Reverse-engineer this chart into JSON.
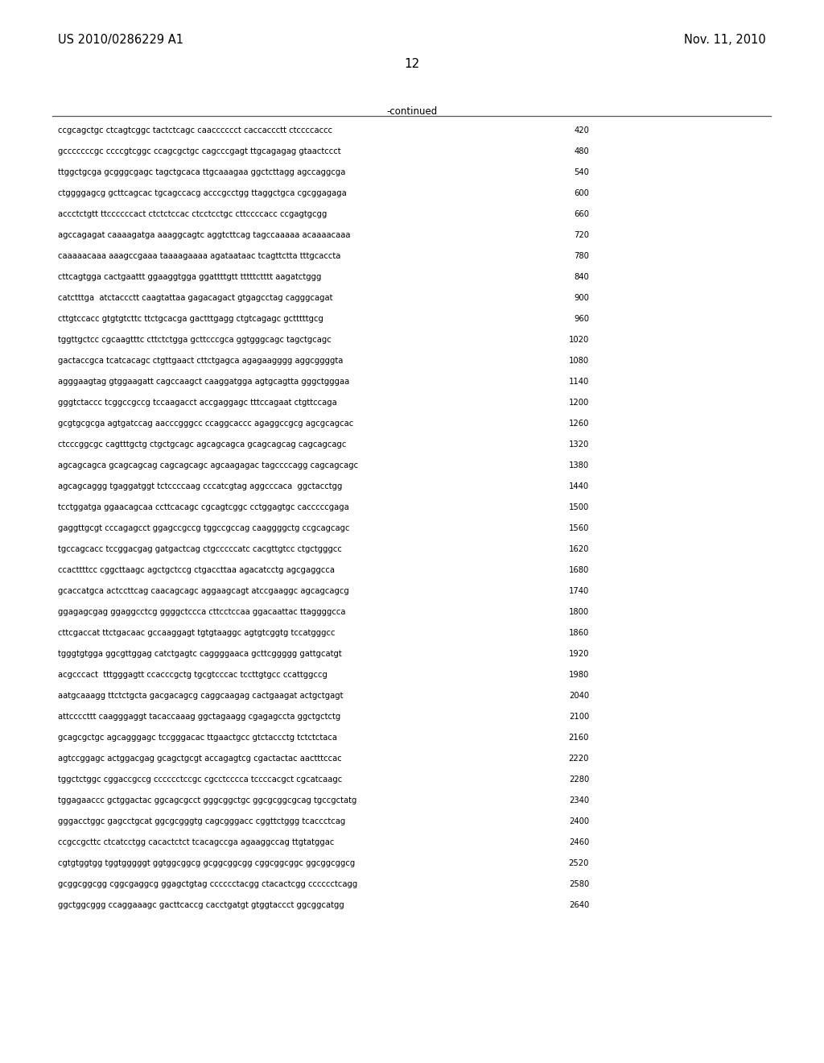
{
  "header_left": "US 2010/0286229 A1",
  "header_right": "Nov. 11, 2010",
  "page_number": "12",
  "continued_label": "-continued",
  "background_color": "#ffffff",
  "text_color": "#000000",
  "sequence_lines": [
    [
      "ccgcagctgc ctcagtcggc tactctcagc caacccccct caccaccctt ctccccaccc",
      "420"
    ],
    [
      "gcccccccgc ccccgtcggc ccagcgctgc cagcccgagt ttgcagagag gtaactccct",
      "480"
    ],
    [
      "ttggctgcga gcgggcgagc tagctgcaca ttgcaaagaa ggctcttagg agccaggcga",
      "540"
    ],
    [
      "ctggggagcg gcttcagcac tgcagccacg acccgcctgg ttaggctgca cgcggagaga",
      "600"
    ],
    [
      "accctctgtt ttccccccact ctctctccac ctcctcctgc cttccccacc ccgagtgcgg",
      "660"
    ],
    [
      "agccagagat caaaagatga aaaggcagtc aggtcttcag tagccaaaaa acaaaacaaa",
      "720"
    ],
    [
      "caaaaacaaa aaagccgaaa taaaagaaaa agataataac tcagttctta tttgcaccta",
      "780"
    ],
    [
      "cttcagtgga cactgaattt ggaaggtgga ggattttgtt tttttctttt aagatctggg",
      "840"
    ],
    [
      "catctttga  atctaccctt caagtattaa gagacagact gtgagcctag cagggcagat",
      "900"
    ],
    [
      "cttgtccacc gtgtgtcttc ttctgcacga gactttgagg ctgtcagagc gctttttgcg",
      "960"
    ],
    [
      "tggttgctcc cgcaagtttc cttctctgga gcttcccgca ggtgggcagc tagctgcagc",
      "1020"
    ],
    [
      "gactaccgca tcatcacagc ctgttgaact cttctgagca agagaagggg aggcggggta",
      "1080"
    ],
    [
      "agggaagtag gtggaagatt cagccaagct caaggatgga agtgcagtta gggctgggaa",
      "1140"
    ],
    [
      "gggtctaccc tcggccgccg tccaagacct accgaggagc tttccagaat ctgttccaga",
      "1200"
    ],
    [
      "gcgtgcgcga agtgatccag aacccgggcc ccaggcaccc agaggccgcg agcgcagcac",
      "1260"
    ],
    [
      "ctcccggcgc cagtttgctg ctgctgcagc agcagcagca gcagcagcag cagcagcagc",
      "1320"
    ],
    [
      "agcagcagca gcagcagcag cagcagcagc agcaagagac tagccccagg cagcagcagc",
      "1380"
    ],
    [
      "agcagcaggg tgaggatggt tctccccaag cccatcgtag aggcccaca  ggctacctgg",
      "1440"
    ],
    [
      "tcctggatga ggaacagcaa ccttcacagc cgcagtcggc cctggagtgc cacccccgaga",
      "1500"
    ],
    [
      "gaggttgcgt cccagagcct ggagccgccg tggccgccag caaggggctg ccgcagcagc",
      "1560"
    ],
    [
      "tgccagcacc tccggacgag gatgactcag ctgcccccatc cacgttgtcc ctgctgggcc",
      "1620"
    ],
    [
      "ccacttttcc cggcttaagc agctgctccg ctgaccttaa agacatcctg agcgaggcca",
      "1680"
    ],
    [
      "gcaccatgca actccttcag caacagcagc aggaagcagt atccgaaggc agcagcagcg",
      "1740"
    ],
    [
      "ggagagcgag ggaggcctcg ggggctccca cttcctccaa ggacaattac ttaggggcca",
      "1800"
    ],
    [
      "cttcgaccat ttctgacaac gccaaggagt tgtgtaaggc agtgtcggtg tccatgggcc",
      "1860"
    ],
    [
      "tgggtgtgga ggcgttggag catctgagtc caggggaaca gcttcggggg gattgcatgt",
      "1920"
    ],
    [
      "acgcccact  tttgggagtt ccacccgctg tgcgtcccac tccttgtgcc ccattggccg",
      "1980"
    ],
    [
      "aatgcaaagg ttctctgcta gacgacagcg caggcaagag cactgaagat actgctgagt",
      "2040"
    ],
    [
      "attccccttt caagggaggt tacaccaaag ggctagaagg cgagagccta ggctgctctg",
      "2100"
    ],
    [
      "gcagcgctgc agcagggagc tccgggacac ttgaactgcc gtctaccctg tctctctaca",
      "2160"
    ],
    [
      "agtccggagc actggacgag gcagctgcgt accagagtcg cgactactac aactttccac",
      "2220"
    ],
    [
      "tggctctggc cggaccgccg cccccctccgc cgcctcccca tccccacgct cgcatcaagc",
      "2280"
    ],
    [
      "tggagaaccc gctggactac ggcagcgcct gggcggctgc ggcgcggcgcag tgccgctatg",
      "2340"
    ],
    [
      "gggacctggc gagcctgcat ggcgcgggtg cagcgggacc cggttctggg tcaccctcag",
      "2400"
    ],
    [
      "ccgccgcttc ctcatcctgg cacactctct tcacagccga agaaggccag ttgtatggac",
      "2460"
    ],
    [
      "cgtgtggtgg tggtgggggt ggtggcggcg gcggcggcgg cggcggcggc ggcggcggcg",
      "2520"
    ],
    [
      "gcggcggcgg cggcgaggcg ggagctgtag cccccctacgg ctacactcgg cccccctcagg",
      "2580"
    ],
    [
      "ggctggcggg ccaggaaagc gacttcaccg cacctgatgt gtggtaccct ggcggcatgg",
      "2640"
    ]
  ]
}
